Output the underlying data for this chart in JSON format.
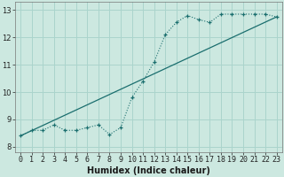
{
  "xlabel": "Humidex (Indice chaleur)",
  "ylabel": "",
  "xlim": [
    -0.5,
    23.5
  ],
  "ylim": [
    7.8,
    13.3
  ],
  "xticks": [
    0,
    1,
    2,
    3,
    4,
    5,
    6,
    7,
    8,
    9,
    10,
    11,
    12,
    13,
    14,
    15,
    16,
    17,
    18,
    19,
    20,
    21,
    22,
    23
  ],
  "yticks": [
    8,
    9,
    10,
    11,
    12,
    13
  ],
  "bg_color": "#cce8e0",
  "grid_color": "#aad4cc",
  "line_color": "#1a6e6e",
  "line1_x": [
    0,
    1,
    2,
    3,
    4,
    5,
    6,
    7,
    8,
    9,
    10,
    11,
    12,
    13,
    14,
    15,
    16,
    17,
    18,
    19,
    20,
    21,
    22,
    23
  ],
  "line1_y": [
    8.4,
    8.6,
    8.6,
    8.8,
    8.6,
    8.6,
    8.7,
    8.8,
    8.45,
    8.7,
    9.8,
    10.4,
    11.1,
    12.1,
    12.55,
    12.8,
    12.65,
    12.55,
    12.85,
    12.85,
    12.85,
    12.85,
    12.85,
    12.75
  ],
  "line2_x": [
    0,
    23
  ],
  "line2_y": [
    8.4,
    12.75
  ],
  "font_size_label": 7,
  "font_size_tick": 6.0
}
